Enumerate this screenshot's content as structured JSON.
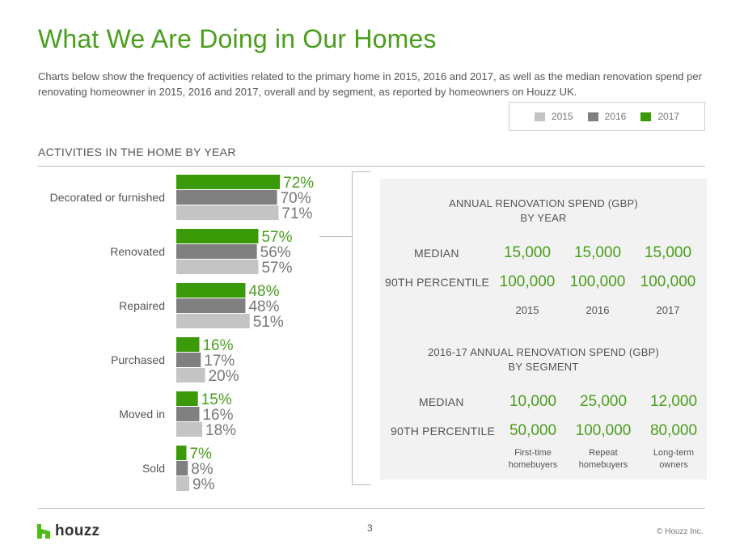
{
  "header": {
    "title": "What We Are Doing in Our Homes",
    "subtitle": "Charts below show the frequency of activities related to the primary home in 2015, 2016 and 2017, as well as the median renovation spend per renovating homeowner in 2015, 2016 and 2017, overall and by segment, as reported by homeowners on Houzz UK."
  },
  "legend": {
    "items": [
      {
        "label": "2015",
        "color": "#c4c4c4"
      },
      {
        "label": "2016",
        "color": "#808080"
      },
      {
        "label": "2017",
        "color": "#3a9a08"
      }
    ]
  },
  "section": {
    "title": "ACTIVITIES IN THE HOME BY YEAR"
  },
  "chart_data": {
    "type": "bar",
    "orientation": "horizontal",
    "title": "ACTIVITIES IN THE HOME BY YEAR",
    "categories": [
      "Decorated or furnished",
      "Renovated",
      "Repaired",
      "Purchased",
      "Moved in",
      "Sold"
    ],
    "series": [
      {
        "name": "2017",
        "color": "#3a9a08",
        "values": [
          72,
          57,
          48,
          16,
          15,
          7
        ]
      },
      {
        "name": "2016",
        "color": "#808080",
        "values": [
          70,
          56,
          48,
          17,
          16,
          8
        ]
      },
      {
        "name": "2015",
        "color": "#c4c4c4",
        "values": [
          71,
          57,
          51,
          20,
          18,
          9
        ]
      }
    ],
    "unit": "%",
    "xlim": [
      0,
      100
    ],
    "grid": false
  },
  "renovation_by_year": {
    "heading_line1": "ANNUAL RENOVATION SPEND (GBP)",
    "heading_line2": "BY YEAR",
    "median_label": "MEDIAN",
    "p90_label": "90TH PERCENTILE",
    "columns": [
      "2015",
      "2016",
      "2017"
    ],
    "median": [
      "15,000",
      "15,000",
      "15,000"
    ],
    "p90": [
      "100,000",
      "100,000",
      "100,000"
    ]
  },
  "renovation_by_segment": {
    "heading_line1": "2016-17 ANNUAL RENOVATION SPEND (GBP)",
    "heading_line2": "BY SEGMENT",
    "median_label": "MEDIAN",
    "p90_label": "90TH PERCENTILE",
    "median": [
      "10,000",
      "25,000",
      "12,000"
    ],
    "p90": [
      "50,000",
      "100,000",
      "80,000"
    ],
    "segments": [
      {
        "line1": "First-time",
        "line2": "homebuyers"
      },
      {
        "line1": "Repeat",
        "line2": "homebuyers"
      },
      {
        "line1": "Long-term",
        "line2": "owners"
      }
    ]
  },
  "footer": {
    "logo_text": "houzz",
    "page_number": "3",
    "copyright": "©  Houzz Inc."
  }
}
